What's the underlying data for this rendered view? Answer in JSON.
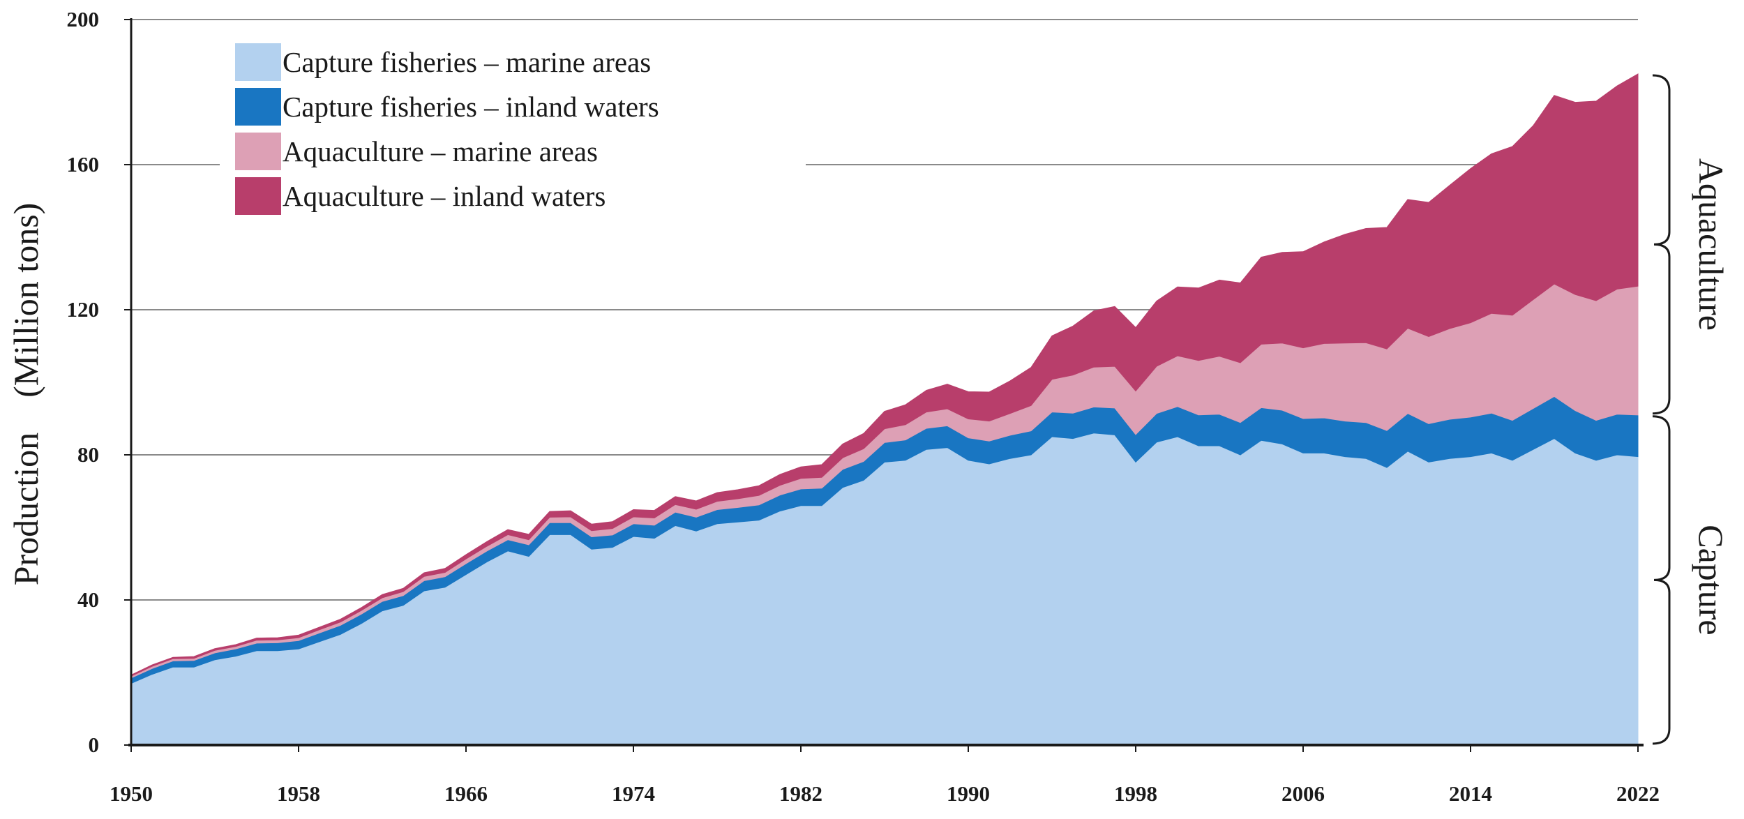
{
  "chart_data": {
    "type": "area",
    "stacked": true,
    "title": "",
    "xlabel": "",
    "ylabel": "Production (Million tons)",
    "xlim": [
      1950,
      2022
    ],
    "ylim": [
      0,
      200
    ],
    "grid": "horizontal",
    "legend_position": "top-left",
    "x_ticks": [
      "1950",
      "1958",
      "1966",
      "1974",
      "1982",
      "1990",
      "1998",
      "2006",
      "2014",
      "2022"
    ],
    "y_ticks": [
      "0",
      "40",
      "80",
      "120",
      "160",
      "200"
    ],
    "x": [
      1950,
      1951,
      1952,
      1953,
      1954,
      1955,
      1956,
      1957,
      1958,
      1959,
      1960,
      1961,
      1962,
      1963,
      1964,
      1965,
      1966,
      1967,
      1968,
      1969,
      1970,
      1971,
      1972,
      1973,
      1974,
      1975,
      1976,
      1977,
      1978,
      1979,
      1980,
      1981,
      1982,
      1983,
      1984,
      1985,
      1986,
      1987,
      1988,
      1989,
      1990,
      1991,
      1992,
      1993,
      1994,
      1995,
      1996,
      1997,
      1998,
      1999,
      2000,
      2001,
      2002,
      2003,
      2004,
      2005,
      2006,
      2007,
      2008,
      2009,
      2010,
      2011,
      2012,
      2013,
      2014,
      2015,
      2016,
      2017,
      2018,
      2019,
      2020,
      2021,
      2022
    ],
    "series": [
      {
        "name": "Capture fisheries – marine areas",
        "color": "#b3d1ef",
        "values": [
          17.0,
          19.5,
          21.5,
          21.5,
          23.5,
          24.5,
          26.0,
          26.0,
          26.5,
          28.5,
          30.5,
          33.5,
          37.0,
          38.5,
          42.5,
          43.5,
          47.0,
          50.5,
          53.5,
          52.0,
          58.0,
          58.0,
          54.0,
          54.5,
          57.5,
          57.0,
          60.5,
          59.0,
          61.0,
          61.5,
          62.0,
          64.5,
          66.0,
          66.0,
          71.0,
          73.0,
          78.0,
          78.5,
          81.5,
          82.0,
          78.5,
          77.5,
          79.0,
          80.0,
          85.0,
          84.5,
          86.0,
          85.5,
          78.0,
          83.5,
          85.0,
          82.5,
          82.5,
          80.0,
          84.0,
          83.0,
          80.5,
          80.5,
          79.5,
          79.0,
          76.5,
          81.0,
          78.0,
          79.0,
          79.5,
          80.5,
          78.5,
          81.5,
          84.5,
          80.5,
          78.5,
          80.0,
          79.5
        ]
      },
      {
        "name": "Capture fisheries – inland waters",
        "color": "#1976c2",
        "values": [
          1.5,
          1.6,
          1.7,
          1.8,
          1.9,
          2.0,
          2.1,
          2.2,
          2.3,
          2.4,
          2.5,
          2.6,
          2.6,
          2.7,
          2.8,
          2.9,
          3.0,
          3.0,
          3.1,
          3.2,
          3.3,
          3.3,
          3.4,
          3.4,
          3.5,
          3.6,
          3.7,
          3.8,
          3.9,
          4.0,
          4.2,
          4.4,
          4.6,
          4.8,
          5.0,
          5.2,
          5.4,
          5.6,
          5.8,
          6.0,
          6.2,
          6.3,
          6.4,
          6.6,
          6.8,
          7.0,
          7.2,
          7.4,
          7.6,
          7.9,
          8.3,
          8.5,
          8.7,
          8.9,
          9.0,
          9.3,
          9.5,
          9.7,
          9.8,
          9.9,
          10.2,
          10.4,
          10.6,
          10.8,
          10.9,
          11.0,
          11.0,
          11.3,
          11.6,
          11.7,
          11.0,
          11.2,
          11.5
        ]
      },
      {
        "name": "Aquaculture – marine areas",
        "color": "#dda0b5",
        "values": [
          0.5,
          0.6,
          0.6,
          0.6,
          0.7,
          0.7,
          0.8,
          0.8,
          0.8,
          0.9,
          0.9,
          1.0,
          1.0,
          1.1,
          1.2,
          1.2,
          1.3,
          1.3,
          1.4,
          1.4,
          1.5,
          1.6,
          1.7,
          1.8,
          1.9,
          2.0,
          2.1,
          2.2,
          2.3,
          2.4,
          2.6,
          2.7,
          2.9,
          3.0,
          3.2,
          3.5,
          3.8,
          4.2,
          4.5,
          4.7,
          5.2,
          5.5,
          6.0,
          7.0,
          9.0,
          10.5,
          11.0,
          11.5,
          12.0,
          13.0,
          14.0,
          15.0,
          16.0,
          16.5,
          17.5,
          18.5,
          19.5,
          20.5,
          21.5,
          22.0,
          22.5,
          23.5,
          24.0,
          25.0,
          26.0,
          27.5,
          29.0,
          30.0,
          31.0,
          32.0,
          33.0,
          34.5,
          35.5
        ]
      },
      {
        "name": "Aquaculture – inland waters",
        "color": "#b83e6b",
        "values": [
          0.3,
          0.4,
          0.4,
          0.5,
          0.5,
          0.5,
          0.6,
          0.6,
          0.7,
          0.7,
          0.8,
          0.8,
          0.9,
          0.9,
          1.0,
          1.1,
          1.2,
          1.3,
          1.4,
          1.5,
          1.6,
          1.7,
          1.8,
          1.9,
          2.0,
          2.1,
          2.2,
          2.3,
          2.4,
          2.5,
          2.7,
          3.0,
          3.2,
          3.5,
          3.8,
          4.2,
          4.8,
          5.5,
          6.0,
          6.8,
          7.5,
          8.0,
          9.0,
          10.5,
          12.0,
          13.5,
          15.5,
          16.5,
          17.5,
          18.0,
          19.0,
          20.0,
          21.0,
          22.0,
          24.0,
          25.0,
          26.5,
          28.0,
          30.0,
          31.5,
          33.5,
          35.5,
          37.0,
          39.5,
          42.5,
          44.0,
          46.5,
          48.0,
          52.0,
          53.0,
          55.0,
          56.0,
          58.5
        ]
      }
    ],
    "brackets": [
      {
        "label": "Aquaculture",
        "from": 91,
        "to": 185
      },
      {
        "label": "Capture",
        "from": 0,
        "to": 91
      }
    ]
  }
}
